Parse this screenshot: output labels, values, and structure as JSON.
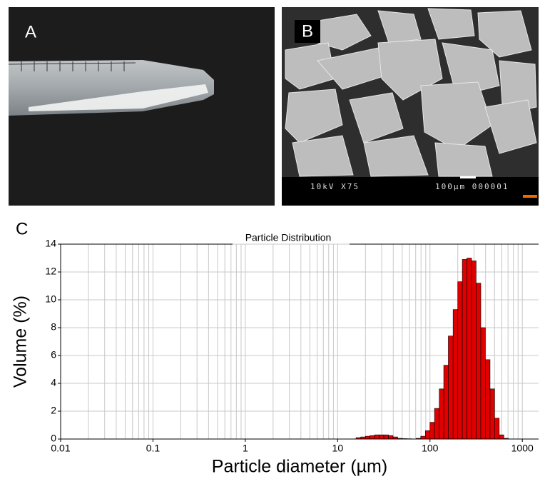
{
  "panel_a": {
    "label": "A"
  },
  "panel_b": {
    "label": "B",
    "info_left": "10kV X75",
    "info_right": "100µm 000001"
  },
  "panel_c": {
    "label": "C"
  },
  "chart_data": {
    "type": "histogram",
    "title": "Particle Distribution",
    "x_label": "Particle diameter (µm)",
    "y_label": "Volume (%)",
    "bins": [
      15.8,
      17.8,
      20.0,
      22.4,
      25.1,
      28.2,
      31.6,
      35.5,
      39.8,
      44.7,
      50.1,
      56.2,
      63.1,
      70.8,
      79.4,
      89.1,
      100,
      112,
      126,
      141,
      158,
      178,
      200,
      224,
      251,
      282,
      316,
      355,
      398,
      447,
      501,
      562,
      631,
      708
    ],
    "values": [
      0.1,
      0.15,
      0.2,
      0.25,
      0.3,
      0.3,
      0.3,
      0.25,
      0.15,
      0.05,
      0.03,
      0.02,
      0,
      0.05,
      0.2,
      0.6,
      1.2,
      2.2,
      3.6,
      5.3,
      7.4,
      9.3,
      11.3,
      12.9,
      13.0,
      12.8,
      11.2,
      8.0,
      5.7,
      3.6,
      1.5,
      0.3,
      0.05
    ],
    "color": "#e00000",
    "x_scale": "log",
    "xlim": [
      0.01,
      1500
    ],
    "xticks": [
      0.01,
      0.1,
      1,
      10,
      100,
      1000
    ],
    "ylim": [
      0,
      14
    ],
    "yticks": [
      0,
      2,
      4,
      6,
      8,
      10,
      12,
      14
    ],
    "grid": true
  }
}
